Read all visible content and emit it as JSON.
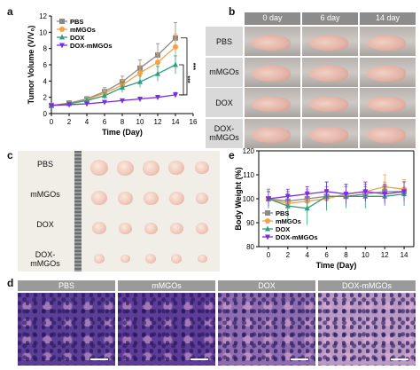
{
  "panels": {
    "a": "a",
    "b": "b",
    "c": "c",
    "d": "d",
    "e": "e"
  },
  "chart_data": [
    {
      "type": "line",
      "panel": "a",
      "xlabel": "Time (Day)",
      "ylabel": "Tumor Volume (V/V₀)",
      "x": [
        0,
        2,
        4,
        6,
        8,
        10,
        12,
        14
      ],
      "xticks": [
        "0",
        "2",
        "4",
        "6",
        "8",
        "10",
        "12",
        "14",
        "16"
      ],
      "yticks": [
        "0",
        "2",
        "4",
        "6",
        "8",
        "10",
        "12"
      ],
      "xlim": [
        0,
        16
      ],
      "ylim": [
        0,
        12
      ],
      "legend_position": "top-left",
      "significance": [
        "***",
        "***"
      ],
      "series": [
        {
          "name": "PBS",
          "color": "#8a8a8a",
          "marker": "square",
          "values": [
            1.0,
            1.3,
            1.8,
            2.7,
            3.9,
            5.6,
            7.2,
            9.3
          ],
          "errors": [
            0.1,
            0.2,
            0.3,
            0.5,
            0.7,
            1.0,
            1.4,
            1.9
          ]
        },
        {
          "name": "mMGOs",
          "color": "#f5a043",
          "marker": "circle",
          "values": [
            1.0,
            1.2,
            1.7,
            2.5,
            3.5,
            5.0,
            6.3,
            8.2
          ],
          "errors": [
            0.1,
            0.2,
            0.3,
            0.4,
            0.6,
            0.9,
            1.1,
            1.6
          ]
        },
        {
          "name": "DOX",
          "color": "#2e9e7f",
          "marker": "triangle",
          "values": [
            1.0,
            1.2,
            1.6,
            2.2,
            3.2,
            3.9,
            4.9,
            6.0
          ],
          "errors": [
            0.1,
            0.2,
            0.3,
            0.4,
            0.6,
            0.7,
            0.9,
            1.1
          ]
        },
        {
          "name": "DOX-mMGOs",
          "color": "#7b2ee0",
          "marker": "triangle-down",
          "values": [
            1.0,
            1.1,
            1.2,
            1.4,
            1.6,
            1.8,
            2.0,
            2.3
          ],
          "errors": [
            0.05,
            0.1,
            0.1,
            0.15,
            0.2,
            0.2,
            0.25,
            0.3
          ]
        }
      ]
    },
    {
      "type": "line",
      "panel": "e",
      "xlabel": "Time (Day)",
      "ylabel": "Body Weight (%)",
      "x": [
        0,
        2,
        4,
        6,
        8,
        10,
        12,
        14
      ],
      "xticks": [
        "0",
        "2",
        "4",
        "6",
        "8",
        "10",
        "12",
        "14"
      ],
      "yticks": [
        "80",
        "90",
        "100",
        "110",
        "120"
      ],
      "xlim": [
        -1,
        15
      ],
      "ylim": [
        80,
        120
      ],
      "legend_position": "bottom-left",
      "series": [
        {
          "name": "PBS",
          "color": "#8a8a8a",
          "marker": "square",
          "values": [
            100,
            99,
            100,
            101,
            101,
            102,
            103,
            103
          ],
          "errors": [
            3,
            3,
            4,
            4,
            4,
            3,
            4,
            4
          ]
        },
        {
          "name": "mMGOs",
          "color": "#f5a043",
          "marker": "circle",
          "values": [
            100,
            98,
            99,
            100,
            102,
            103,
            105,
            104
          ],
          "errors": [
            4,
            5,
            5,
            4,
            4,
            4,
            5,
            4
          ]
        },
        {
          "name": "DOX",
          "color": "#2e9e7f",
          "marker": "triangle",
          "values": [
            100,
            97,
            96,
            101,
            101,
            101,
            101,
            102
          ],
          "errors": [
            4,
            6,
            7,
            6,
            5,
            5,
            4,
            5
          ]
        },
        {
          "name": "DOX-mMGOs",
          "color": "#7b2ee0",
          "marker": "triangle-down",
          "values": [
            100,
            101,
            102,
            103,
            102,
            103,
            102,
            103
          ],
          "errors": [
            3,
            3,
            3,
            4,
            4,
            4,
            4,
            4
          ]
        }
      ]
    }
  ],
  "photos_b": {
    "columns": [
      "0 day",
      "6 day",
      "14 day"
    ],
    "rows": [
      "PBS",
      "mMGOs",
      "DOX",
      "DOX-\nmMGOs"
    ]
  },
  "tumors_c": {
    "rows": [
      "PBS",
      "mMGOs",
      "DOX",
      "DOX-\nmMGOs"
    ],
    "counts": [
      5,
      5,
      5,
      5
    ]
  },
  "histology_d": {
    "columns": [
      "PBS",
      "mMGOs",
      "DOX",
      "DOX-mMGOs"
    ],
    "colors": [
      "#5b3f96",
      "#5e3d98",
      "#8d6db0",
      "#b89ac4"
    ]
  }
}
